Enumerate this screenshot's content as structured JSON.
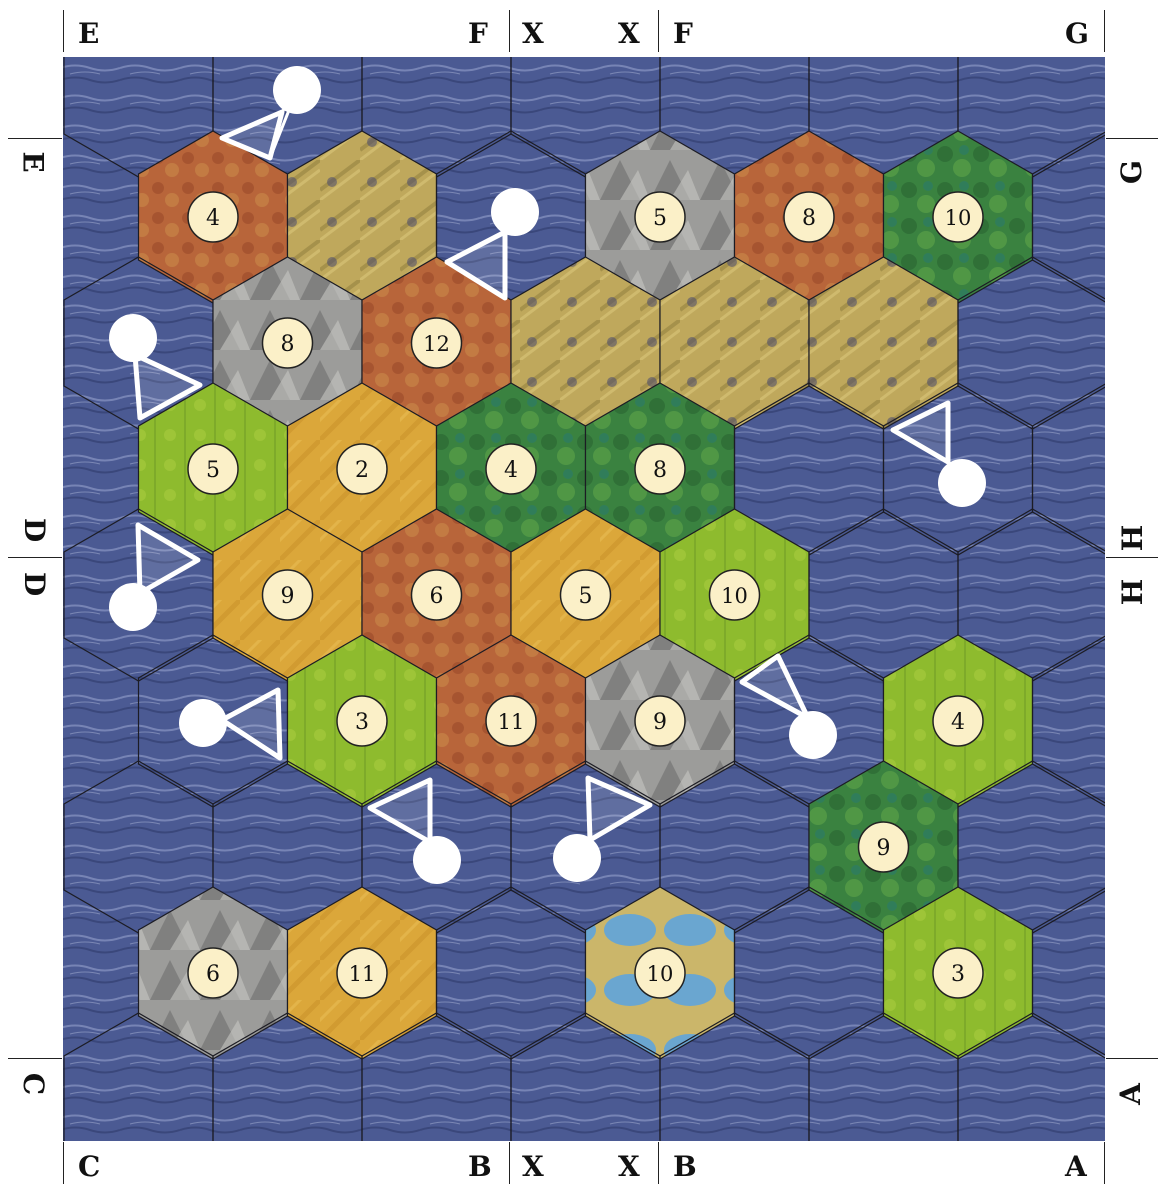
{
  "board": {
    "colors": {
      "sea": "#4b5a93",
      "sea_light": "#7d8ab8",
      "hex_border": "#1c1c24",
      "token_fill": "#fbf0c8",
      "token_stroke": "#222222",
      "harbor": "#ffffff"
    },
    "terrain_colors": {
      "hills": "#b9643a",
      "fields": "#d9a63a",
      "pasture": "#8fbb2f",
      "forest": "#3d8a3f",
      "mountains": "#9a9a98",
      "desert": "#c4ad5e",
      "lake": "#7ab0cf"
    },
    "tiles": [
      {
        "row": 1,
        "col": 0,
        "terrain": "hills",
        "number": "4"
      },
      {
        "row": 1,
        "col": 1,
        "terrain": "desert",
        "number": ""
      },
      {
        "row": 1,
        "col": 3,
        "terrain": "mountains",
        "number": "5"
      },
      {
        "row": 1,
        "col": 4,
        "terrain": "hills",
        "number": "8"
      },
      {
        "row": 1,
        "col": 5,
        "terrain": "forest",
        "number": "10"
      },
      {
        "row": 2,
        "col": 1,
        "terrain": "mountains",
        "number": "8"
      },
      {
        "row": 2,
        "col": 2,
        "terrain": "hills",
        "number": "12"
      },
      {
        "row": 2,
        "col": 3,
        "terrain": "desert",
        "number": ""
      },
      {
        "row": 2,
        "col": 4,
        "terrain": "desert",
        "number": ""
      },
      {
        "row": 2,
        "col": 5,
        "terrain": "desert",
        "number": ""
      },
      {
        "row": 3,
        "col": 0,
        "terrain": "pasture",
        "number": "5"
      },
      {
        "row": 3,
        "col": 1,
        "terrain": "fields",
        "number": "2"
      },
      {
        "row": 3,
        "col": 2,
        "terrain": "forest",
        "number": "4"
      },
      {
        "row": 3,
        "col": 3,
        "terrain": "forest",
        "number": "8"
      },
      {
        "row": 4,
        "col": 1,
        "terrain": "fields",
        "number": "9"
      },
      {
        "row": 4,
        "col": 2,
        "terrain": "hills",
        "number": "6"
      },
      {
        "row": 4,
        "col": 3,
        "terrain": "fields",
        "number": "5"
      },
      {
        "row": 4,
        "col": 4,
        "terrain": "pasture",
        "number": "10"
      },
      {
        "row": 5,
        "col": 1,
        "terrain": "pasture",
        "number": "3"
      },
      {
        "row": 5,
        "col": 2,
        "terrain": "hills",
        "number": "11"
      },
      {
        "row": 5,
        "col": 3,
        "terrain": "mountains",
        "number": "9"
      },
      {
        "row": 5,
        "col": 5,
        "terrain": "pasture",
        "number": "4"
      },
      {
        "row": 6,
        "col": 5,
        "terrain": "forest",
        "number": "9"
      },
      {
        "row": 7,
        "col": 0,
        "terrain": "mountains",
        "number": "6"
      },
      {
        "row": 7,
        "col": 1,
        "terrain": "fields",
        "number": "11"
      },
      {
        "row": 7,
        "col": 3,
        "terrain": "lake",
        "number": "10"
      },
      {
        "row": 7,
        "col": 5,
        "terrain": "pasture",
        "number": "3"
      }
    ],
    "harbors": [
      {
        "name": "harbor-1",
        "tri": [
          [
            222,
            138
          ],
          [
            282,
            112
          ],
          [
            270,
            158
          ]
        ],
        "circle": [
          297,
          90
        ]
      },
      {
        "name": "harbor-2",
        "tri": [
          [
            447,
            262
          ],
          [
            505,
            232
          ],
          [
            505,
            298
          ]
        ],
        "circle": [
          515,
          212
        ]
      },
      {
        "name": "harbor-3",
        "tri": [
          [
            135,
            355
          ],
          [
            200,
            385
          ],
          [
            140,
            418
          ]
        ],
        "circle": [
          133,
          338
        ]
      },
      {
        "name": "harbor-4",
        "tri": [
          [
            893,
            430
          ],
          [
            948,
            403
          ],
          [
            948,
            462
          ]
        ],
        "circle": [
          962,
          483
        ]
      },
      {
        "name": "harbor-5",
        "tri": [
          [
            138,
            525
          ],
          [
            198,
            560
          ],
          [
            140,
            593
          ]
        ],
        "circle": [
          133,
          607
        ]
      },
      {
        "name": "harbor-6",
        "tri": [
          [
            222,
            720
          ],
          [
            278,
            690
          ],
          [
            280,
            758
          ]
        ],
        "circle": [
          203,
          723
        ]
      },
      {
        "name": "harbor-7",
        "tri": [
          [
            742,
            682
          ],
          [
            778,
            656
          ],
          [
            808,
            718
          ]
        ],
        "circle": [
          813,
          735
        ]
      },
      {
        "name": "harbor-8",
        "tri": [
          [
            370,
            808
          ],
          [
            430,
            780
          ],
          [
            430,
            842
          ]
        ],
        "circle": [
          437,
          860
        ]
      },
      {
        "name": "harbor-9",
        "tri": [
          [
            588,
            778
          ],
          [
            650,
            805
          ],
          [
            590,
            840
          ]
        ],
        "circle": [
          577,
          858
        ]
      }
    ]
  },
  "labels": {
    "top": [
      "E",
      "F",
      "X",
      "X",
      "F",
      "G"
    ],
    "bottom": [
      "C",
      "B",
      "X",
      "X",
      "B",
      "A"
    ],
    "left_upper": "E",
    "left_mid_top": "D",
    "left_mid_bottom": "D",
    "left_lower": "C",
    "right_upper": "G",
    "right_mid_top": "H",
    "right_mid_bottom": "H",
    "right_lower": "A"
  }
}
